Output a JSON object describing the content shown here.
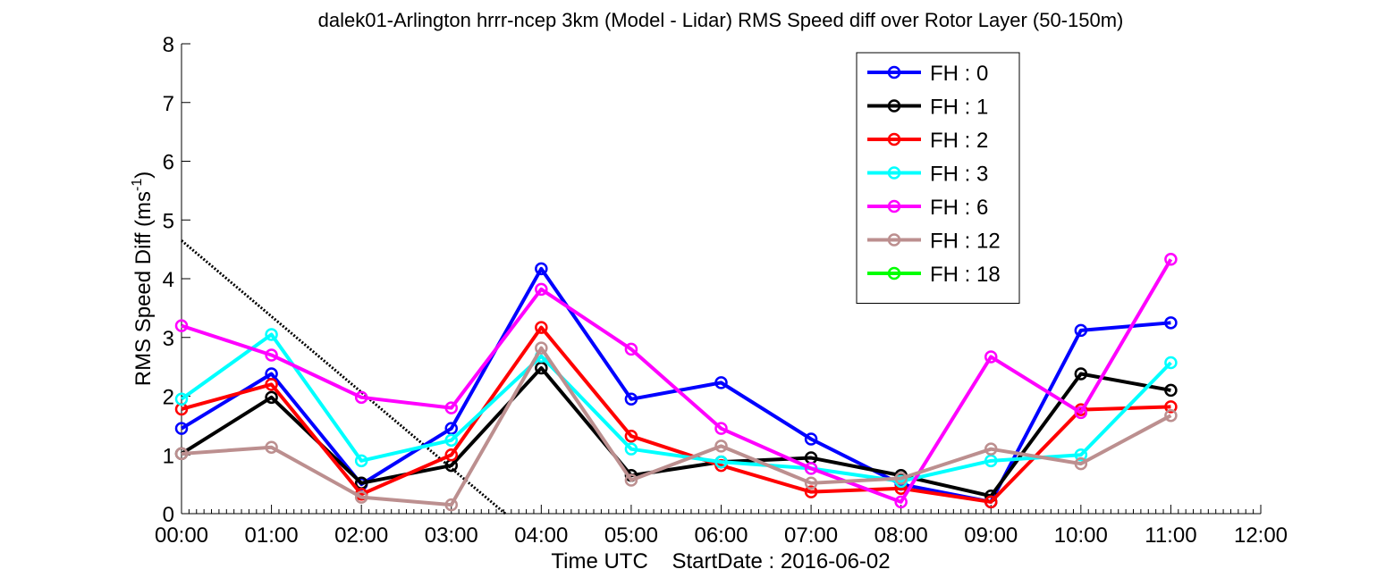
{
  "chart_data": {
    "type": "line",
    "title": "dalek01-Arlington hrrr-ncep 3km (Model - Lidar) RMS Speed diff over Rotor Layer (50-150m)",
    "xlabel": "Time UTC    StartDate : 2016-06-02",
    "ylabel": {
      "main": "RMS Speed Diff (ms",
      "sup": "-1",
      "close": ")"
    },
    "x_ticks": [
      "00:00",
      "01:00",
      "02:00",
      "03:00",
      "04:00",
      "05:00",
      "06:00",
      "07:00",
      "08:00",
      "09:00",
      "10:00",
      "11:00",
      "12:00"
    ],
    "y_ticks": [
      "0",
      "1",
      "2",
      "3",
      "4",
      "5",
      "6",
      "7",
      "8"
    ],
    "xlim": [
      0,
      12
    ],
    "ylim": [
      0,
      8
    ],
    "grid": false,
    "legend_position": "top-right",
    "series": [
      {
        "name": "FH : 0",
        "color": "#0000ff",
        "x": [
          0,
          1,
          2,
          3,
          4,
          5,
          6,
          7,
          8,
          9,
          10,
          11
        ],
        "y": [
          1.45,
          2.38,
          0.5,
          1.45,
          4.17,
          1.95,
          2.23,
          1.27,
          0.5,
          0.2,
          3.12,
          3.25
        ]
      },
      {
        "name": "FH : 1",
        "color": "#000000",
        "x": [
          0,
          1,
          2,
          3,
          4,
          5,
          6,
          7,
          8,
          9,
          10,
          11
        ],
        "y": [
          1.02,
          1.98,
          0.52,
          0.82,
          2.48,
          0.65,
          0.88,
          0.95,
          0.65,
          0.3,
          2.38,
          2.1
        ]
      },
      {
        "name": "FH : 2",
        "color": "#ff0000",
        "x": [
          0,
          1,
          2,
          3,
          4,
          5,
          6,
          7,
          8,
          9,
          10,
          11
        ],
        "y": [
          1.78,
          2.2,
          0.33,
          1.0,
          3.17,
          1.32,
          0.82,
          0.37,
          0.43,
          0.2,
          1.77,
          1.82
        ]
      },
      {
        "name": "FH : 3",
        "color": "#00ffff",
        "x": [
          0,
          1,
          2,
          3,
          4,
          5,
          6,
          7,
          8,
          9,
          10,
          11
        ],
        "y": [
          1.95,
          3.05,
          0.9,
          1.25,
          2.68,
          1.1,
          0.88,
          0.77,
          0.55,
          0.9,
          1.0,
          2.57
        ]
      },
      {
        "name": "FH : 6",
        "color": "#ff00ff",
        "x": [
          0,
          1,
          2,
          3,
          4,
          5,
          6,
          7,
          8,
          9,
          10,
          11
        ],
        "y": [
          3.2,
          2.7,
          1.98,
          1.8,
          3.82,
          2.8,
          1.45,
          0.77,
          0.2,
          2.67,
          1.72,
          4.33
        ]
      },
      {
        "name": "FH : 12",
        "color": "#bc8f8f",
        "x": [
          0,
          1,
          2,
          3,
          4,
          5,
          6,
          7,
          8,
          9,
          10,
          11
        ],
        "y": [
          1.02,
          1.13,
          0.28,
          0.15,
          2.82,
          0.57,
          1.15,
          0.52,
          0.6,
          1.1,
          0.85,
          1.67
        ]
      },
      {
        "name": "FH : 18",
        "color": "#00ff00",
        "x": [],
        "y": []
      }
    ],
    "annotations": [
      {
        "type": "dotted-line",
        "color": "#000000",
        "x": [
          0,
          3.6
        ],
        "y": [
          4.65,
          0
        ]
      }
    ]
  }
}
